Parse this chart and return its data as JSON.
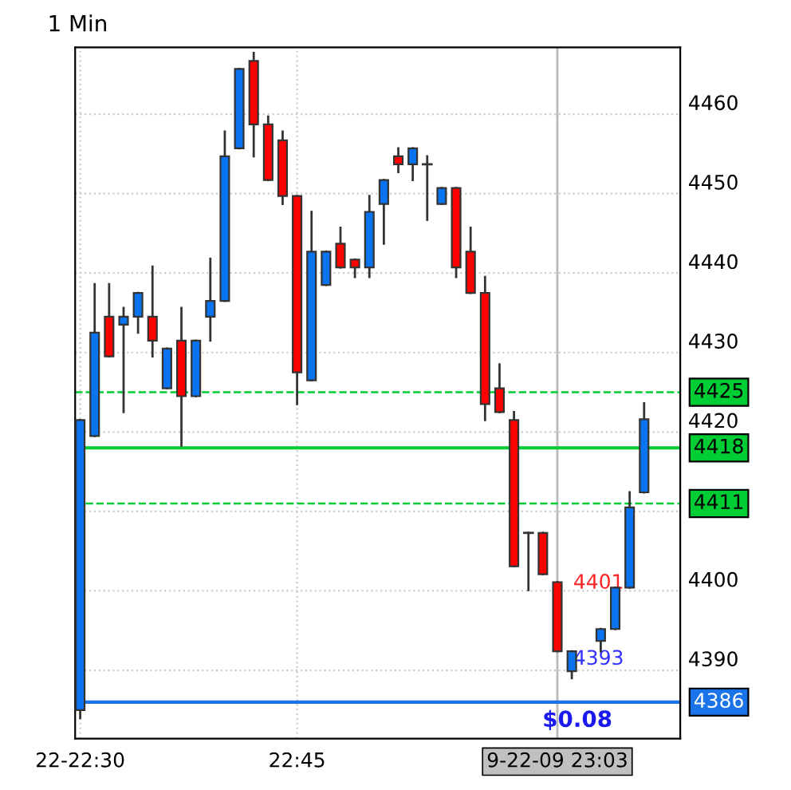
{
  "chart_data": {
    "type": "candlestick",
    "title": "1 Min",
    "categories": [
      "22-22:30",
      null,
      null,
      null,
      null,
      null,
      null,
      null,
      null,
      null,
      null,
      null,
      null,
      null,
      null,
      "22:45",
      null,
      null,
      null,
      null,
      null,
      null,
      null,
      null,
      null,
      null,
      null,
      null,
      null,
      null,
      null,
      null,
      null,
      "9-22-09 23:03",
      null,
      null,
      null,
      null,
      null,
      null
    ],
    "ohlc": [
      [
        4385,
        4421.5,
        4384,
        4421.5
      ],
      [
        4419.5,
        4438.6,
        4419.5,
        4432.5
      ],
      [
        4434.5,
        4438.6,
        4429.5,
        4429.5
      ],
      [
        4433.5,
        4435.6,
        4422.5,
        4434.5
      ],
      [
        4434.5,
        4437.5,
        4432.5,
        4437.5
      ],
      [
        4434.5,
        4440.8,
        4429.5,
        4431.5
      ],
      [
        4425.5,
        4430.5,
        4425.5,
        4430.5
      ],
      [
        4431.5,
        4435.6,
        4418.3,
        4424.5
      ],
      [
        4424.5,
        4431.5,
        4424.5,
        4431.5
      ],
      [
        4434.5,
        4441.8,
        4431.5,
        4436.5
      ],
      [
        4436.5,
        4457.8,
        4436.5,
        4454.7
      ],
      [
        4455.7,
        4465.7,
        4455.7,
        4465.7
      ],
      [
        4466.7,
        4467.7,
        4454.7,
        4458.7
      ],
      [
        4458.7,
        4459.7,
        4451.7,
        4451.7
      ],
      [
        4456.7,
        4457.8,
        4448.7,
        4449.7
      ],
      [
        4449.7,
        4449.7,
        4423.5,
        4427.5
      ],
      [
        4426.5,
        4447.7,
        4426.5,
        4442.7
      ],
      [
        4438.5,
        4442.7,
        4438.5,
        4442.7
      ],
      [
        4443.7,
        4445.7,
        4440.7,
        4440.7
      ],
      [
        4441.7,
        4441.7,
        4439.5,
        4440.7
      ],
      [
        4440.7,
        4449.7,
        4439.5,
        4447.7
      ],
      [
        4448.7,
        4451.7,
        4443.7,
        4451.7
      ],
      [
        4454.7,
        4455.7,
        4452.7,
        4453.7
      ],
      [
        4453.7,
        4455.7,
        4451.7,
        4455.7
      ],
      [
        4453.7,
        4454.7,
        4446.7,
        4453.7
      ],
      [
        4448.7,
        4450.7,
        4448.7,
        4450.7
      ],
      [
        4450.7,
        4450.7,
        4439.5,
        4440.7
      ],
      [
        4442.7,
        4445.7,
        4437.5,
        4437.5
      ],
      [
        4437.5,
        4439.5,
        4421.5,
        4423.5
      ],
      [
        4425.5,
        4428.5,
        4422.5,
        4422.5
      ],
      [
        4421.5,
        4422.5,
        4403.1,
        4403.1
      ],
      [
        4407.3,
        4407.3,
        4400.1,
        4407.3
      ],
      [
        4407.3,
        4407.3,
        4402.1,
        4402.1
      ],
      [
        4401.1,
        4401.1,
        4392.4,
        4392.4
      ],
      [
        4389.9,
        4392.4,
        4389,
        4392.4
      ],
      null,
      [
        4393.7,
        4395.2,
        4392.4,
        4395.2
      ],
      [
        4395.2,
        4400.4,
        4395.2,
        4400.4
      ],
      [
        4400.4,
        4412.4,
        4400.4,
        4410.5
      ],
      [
        4412.4,
        4423.6,
        4412.4,
        4421.6
      ]
    ],
    "colors": [
      "#0a74f0",
      "#0a74f0",
      "#ff0000",
      "#0a74f0",
      "#0a74f0",
      "#ff0000",
      "#0a74f0",
      "#ff0000",
      "#0a74f0",
      "#0a74f0",
      "#0a74f0",
      "#0a74f0",
      "#ff0000",
      "#ff0000",
      "#ff0000",
      "#ff0000",
      "#0a74f0",
      "#0a74f0",
      "#ff0000",
      "#ff0000",
      "#0a74f0",
      "#0a74f0",
      "#ff0000",
      "#0a74f0",
      "#333333",
      "#0a74f0",
      "#ff0000",
      "#ff0000",
      "#ff0000",
      "#ff0000",
      "#ff0000",
      "#333333",
      "#ff0000",
      "#ff0000",
      "#0a74f0",
      null,
      "#0a74f0",
      "#0a74f0",
      "#0a74f0",
      "#0a74f0"
    ],
    "ylim": [
      4381.4,
      4468.4
    ],
    "yticks": [
      4390,
      4400,
      {
        "value": 4410,
        "label": null
      },
      4420,
      4430,
      4440,
      4450,
      4460
    ],
    "grid": true,
    "ref_lines": [
      {
        "axis": "y",
        "value": 4425,
        "label": "4425",
        "color": "#00cc33",
        "line_style": "dashed"
      },
      {
        "axis": "y",
        "value": 4418,
        "label": "4418",
        "color": "#00cc33",
        "line_style": "solid"
      },
      {
        "axis": "y",
        "value": 4411,
        "label": "4411",
        "color": "#00cc33",
        "line_style": "dashed"
      },
      {
        "axis": "y",
        "value": 4386,
        "label": "4386",
        "color": "#1a73e8",
        "line_style": "solid"
      },
      {
        "axis": "x",
        "value": "9-22-09 23:03",
        "color": "#bbbbbb",
        "line_style": "solid"
      }
    ],
    "annotations": [
      "4401",
      "$0.08",
      "4393"
    ]
  }
}
